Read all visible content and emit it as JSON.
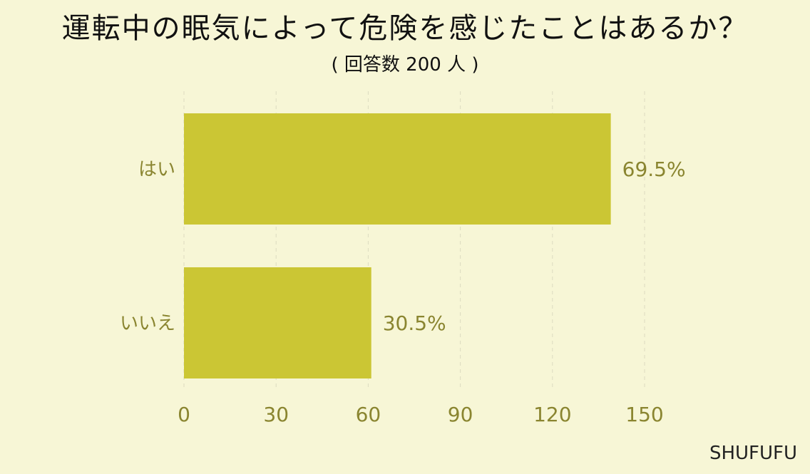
{
  "chart_data": {
    "type": "bar",
    "orientation": "horizontal",
    "title": "運転中の眠気によって危険を感じたことはあるか？",
    "subtitle": "( 回答数 200 人 )",
    "categories": [
      "はい",
      "いいえ"
    ],
    "values": [
      139,
      61
    ],
    "value_labels": [
      "69.5%",
      "30.5%"
    ],
    "xticks": [
      "0",
      "30",
      "60",
      "90",
      "120",
      "150"
    ],
    "xlim": [
      0,
      150
    ],
    "grid": true,
    "bar_color": "#cbc634",
    "text_color": "#8a8530"
  },
  "brand": "SHUFUFU"
}
